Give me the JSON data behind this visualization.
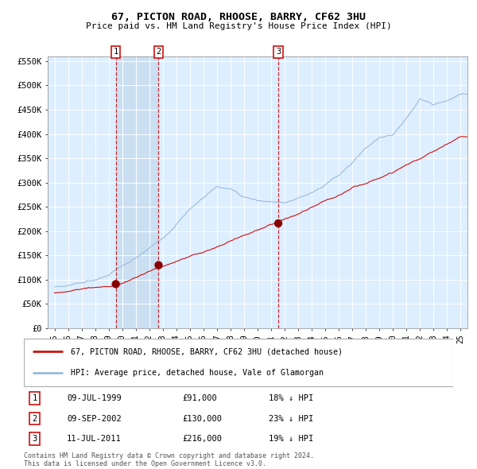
{
  "title": "67, PICTON ROAD, RHOOSE, BARRY, CF62 3HU",
  "subtitle": "Price paid vs. HM Land Registry's House Price Index (HPI)",
  "legend_line1": "67, PICTON ROAD, RHOOSE, BARRY, CF62 3HU (detached house)",
  "legend_line2": "HPI: Average price, detached house, Vale of Glamorgan",
  "footer1": "Contains HM Land Registry data © Crown copyright and database right 2024.",
  "footer2": "This data is licensed under the Open Government Licence v3.0.",
  "transactions": [
    {
      "label": "1",
      "date": "09-JUL-1999",
      "price": 91000,
      "pct": "18%",
      "year": 1999.53
    },
    {
      "label": "2",
      "date": "09-SEP-2002",
      "price": 130000,
      "pct": "23%",
      "year": 2002.69
    },
    {
      "label": "3",
      "date": "11-JUL-2011",
      "price": 216000,
      "pct": "19%",
      "year": 2011.53
    }
  ],
  "ylim": [
    0,
    560000
  ],
  "xlim_start": 1994.5,
  "xlim_end": 2025.5,
  "hpi_color": "#99bbdd",
  "price_color": "#cc1111",
  "marker_color": "#880000",
  "plot_bg": "#ddeeff",
  "grid_color": "#ffffff",
  "highlight_color": "#c8ddf0",
  "transaction_line_color": "#cc1111",
  "box_border_color": "#cc1111",
  "yticks": [
    0,
    50000,
    100000,
    150000,
    200000,
    250000,
    300000,
    350000,
    400000,
    450000,
    500000,
    550000
  ],
  "ytick_labels": [
    "£0",
    "£50K",
    "£100K",
    "£150K",
    "£200K",
    "£250K",
    "£300K",
    "£350K",
    "£400K",
    "£450K",
    "£500K",
    "£550K"
  ],
  "xtick_years": [
    1995,
    1996,
    1997,
    1998,
    1999,
    2000,
    2001,
    2002,
    2003,
    2004,
    2005,
    2006,
    2007,
    2008,
    2009,
    2010,
    2011,
    2012,
    2013,
    2014,
    2015,
    2016,
    2017,
    2018,
    2019,
    2020,
    2021,
    2022,
    2023,
    2024,
    2025
  ],
  "xtick_labels": [
    "95",
    "96",
    "97",
    "98",
    "99",
    "00",
    "01",
    "02",
    "03",
    "04",
    "05",
    "06",
    "07",
    "08",
    "09",
    "10",
    "11",
    "12",
    "13",
    "14",
    "15",
    "16",
    "17",
    "18",
    "19",
    "20",
    "21",
    "22",
    "23",
    "24",
    "25"
  ]
}
